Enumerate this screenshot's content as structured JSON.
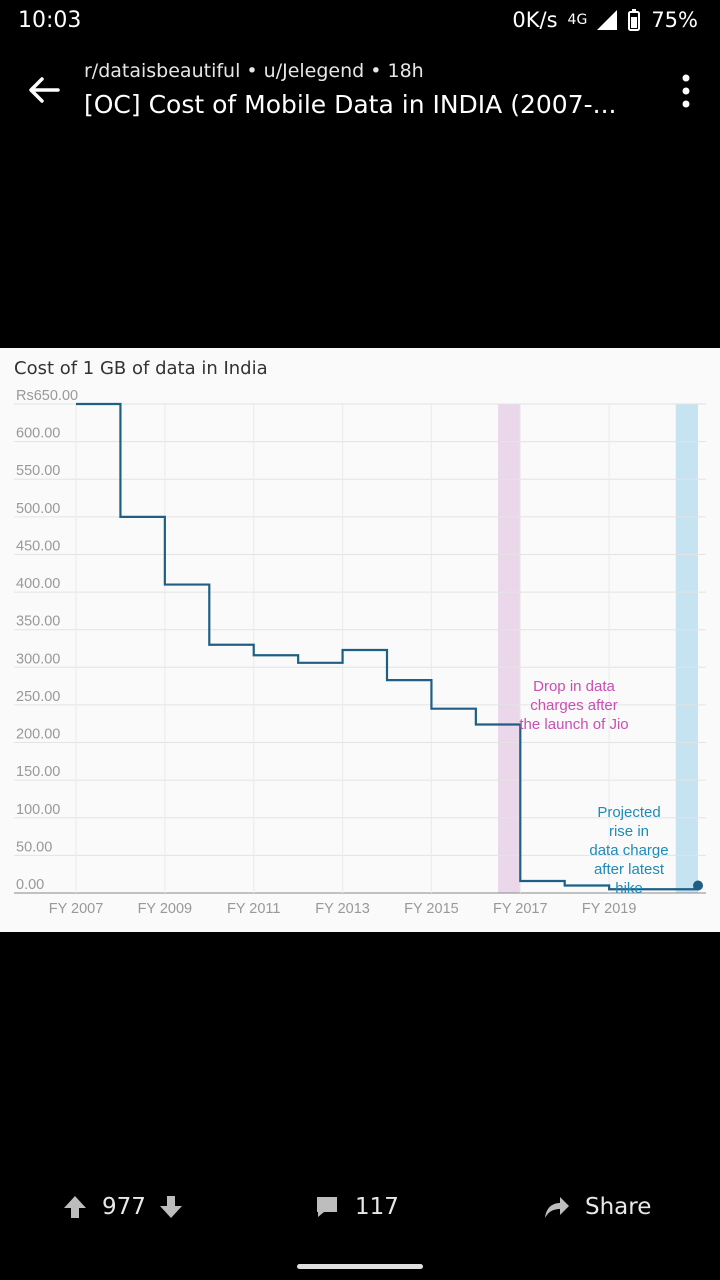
{
  "status_bar": {
    "time": "10:03",
    "speed": "0K/s",
    "network": "4G",
    "battery": "75%"
  },
  "header": {
    "subreddit_line": "r/dataisbeautiful • u/Jelegend • 18h",
    "post_title": "[OC] Cost of Mobile Data in INDIA (2007-..."
  },
  "chart_data": {
    "type": "line",
    "title": "Cost of 1 GB of data in India",
    "x_tick_labels": [
      "FY 2007",
      "FY 2009",
      "FY 2011",
      "FY 2013",
      "FY 2015",
      "FY 2017",
      "FY 2019"
    ],
    "y_tick_labels": [
      "0.00",
      "50.00",
      "100.00",
      "150.00",
      "200.00",
      "250.00",
      "300.00",
      "350.00",
      "400.00",
      "450.00",
      "500.00",
      "550.00",
      "600.00",
      "Rs650.00"
    ],
    "ylim": [
      0,
      650
    ],
    "xlim": [
      2007,
      2021
    ],
    "series": [
      {
        "step": true,
        "x": [
          2007,
          2007.5,
          2008,
          2008.5,
          2009,
          2009.5,
          2010,
          2010.5,
          2011,
          2011.5,
          2012,
          2012.5,
          2013,
          2013.5,
          2014,
          2014.5,
          2015,
          2015.5,
          2016,
          2016.5,
          2017,
          2017.5,
          2018,
          2018.5,
          2019,
          2019.5,
          2020,
          2020.5,
          2021
        ],
        "y": [
          650,
          650,
          500,
          500,
          410,
          410,
          330,
          330,
          316,
          316,
          306,
          306,
          323,
          323,
          283,
          283,
          245,
          245,
          224,
          224,
          16,
          16,
          10,
          10,
          5,
          5,
          5,
          5,
          10
        ]
      }
    ],
    "annotations": [
      {
        "text": "Drop in data charges after the launch of Jio",
        "lines": [
          "Drop in data",
          "charges after",
          "the launch of Jio"
        ],
        "color": "#c94fb3",
        "band": [
          2016.5,
          2017
        ],
        "band_color": "#ead8ea"
      },
      {
        "text": "Projected rise in data charge after latest hike",
        "lines": [
          "Projected",
          "rise in",
          "data charge",
          "after latest",
          "hike"
        ],
        "color": "#1e8bb8",
        "band": [
          2020.5,
          2021
        ],
        "band_color": "#c6e3f1"
      }
    ],
    "line_color": "#1f5f86",
    "grid": true
  },
  "actions": {
    "upvotes": "977",
    "comments": "117",
    "share": "Share"
  }
}
